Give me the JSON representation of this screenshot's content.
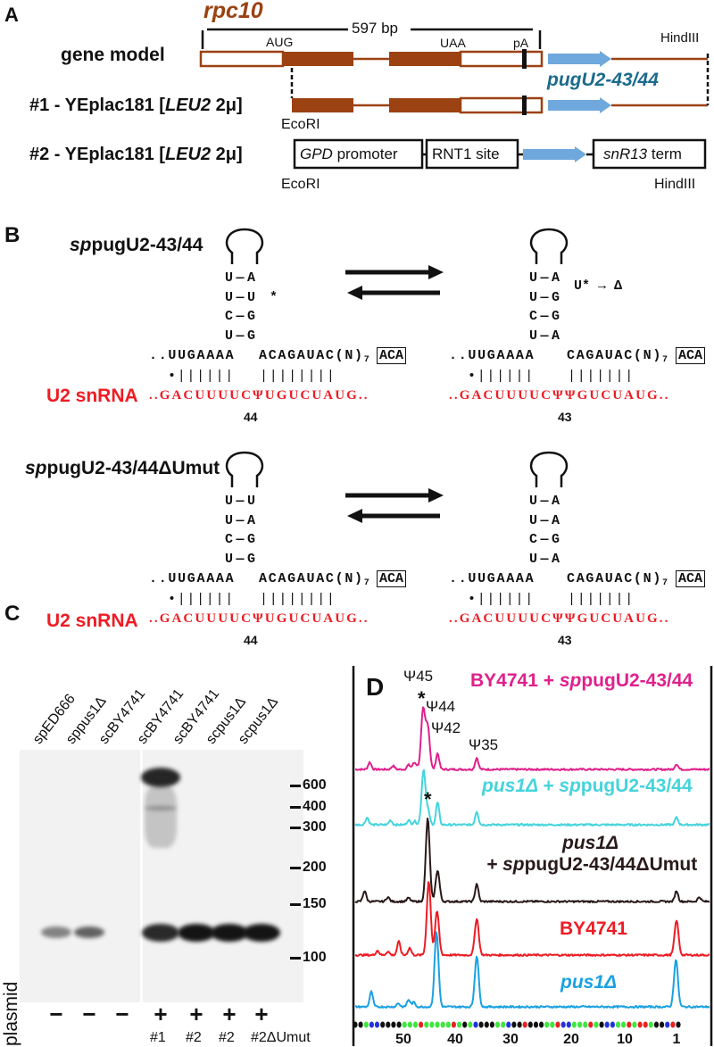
{
  "panel_labels": {
    "a": "A",
    "b": "B",
    "c": "C",
    "d": "D"
  },
  "panel_a": {
    "gene_name": "rpc10",
    "length": "597 bp",
    "aug": "AUG",
    "uaa": "UAA",
    "pa": "pA",
    "hindiii": "HindIII",
    "ecori": "EcoRI",
    "pug": "pugU2-43/44",
    "row_gene_model": "gene model",
    "row1": {
      "prefix": "#1 - YEplac181 [",
      "italic": "LEU2",
      "suffix": " 2μ]"
    },
    "row2": {
      "prefix": "#2 - YEplac181 [",
      "italic": "LEU2",
      "suffix": " 2μ]"
    },
    "gpd": {
      "italic": "GPD",
      "rest": " promoter"
    },
    "rnt1": "RNT1 site",
    "snr13": {
      "italic": "snR13",
      "rest": " term"
    },
    "colors": {
      "exon": "#9c4112",
      "arrow": "#6fa8dc",
      "pug": "#1b6a8c"
    }
  },
  "panel_b": {
    "u2_label": "U2 snRNA",
    "constructs": [
      {
        "name_italic": "sp",
        "name_rest": "pugU2-43/44",
        "left": {
          "pairs": [
            "U—A",
            "U—U *",
            "C—G",
            "U—G"
          ],
          "seq5": "..UUGAAAA",
          "seq3": "ACAGAUAC(N)",
          "sub": "7",
          "box": "ACA",
          "bars5": "•||||||",
          "bars3": "||||||||",
          "u2": "..GACUUUUCΨUGUCUAUG..",
          "pos": "44"
        },
        "right": {
          "pairs": [
            "U—A",
            "U—G",
            "C—G",
            "U—A"
          ],
          "note": "U* → Δ",
          "seq5": "..UUGAAAA",
          "seq3": "CAGAUAC(N)",
          "sub": "7",
          "box": "ACA",
          "bars5": "•||||||",
          "bars3": "|||||||",
          "u2": "..GACUUUUCΨΨGUCUAUG..",
          "pos": "43"
        }
      },
      {
        "name_italic": "sp",
        "name_rest": "pugU2-43/44ΔUmut",
        "left": {
          "pairs": [
            "U—U",
            "U—A",
            "C—G",
            "U—G"
          ],
          "seq5": "..UUGAAAA",
          "seq3": "ACAGAUAC(N)",
          "sub": "7",
          "box": "ACA",
          "bars5": "•||||||",
          "bars3": "||||||||",
          "u2": "..GACUUUUCΨUGUCUAUG..",
          "pos": "44"
        },
        "right": {
          "pairs": [
            "U—A",
            "U—A",
            "C—G",
            "U—A"
          ],
          "seq5": "..UUGAAAA",
          "seq3": "CAGAUAC(N)",
          "sub": "7",
          "box": "ACA",
          "bars5": "•||||||",
          "bars3": "|||||||",
          "u2": "..GACUUUUCΨΨGUCUAUG..",
          "pos": "43"
        }
      }
    ]
  },
  "panel_c": {
    "row_label": "plasmid",
    "markers": [
      "600",
      "400",
      "300",
      "200",
      "150",
      "100"
    ],
    "lanes": [
      {
        "label": "spED666",
        "sign": "−",
        "plasmid": "",
        "band_intensity": 0.5,
        "high_band": 0
      },
      {
        "label": "sppus1Δ",
        "sign": "−",
        "plasmid": "",
        "band_intensity": 0.65,
        "high_band": 0
      },
      {
        "label": "scBY4741",
        "sign": "−",
        "plasmid": "",
        "band_intensity": 0,
        "high_band": 0
      },
      {
        "label": "scBY4741",
        "sign": "+",
        "plasmid": "#1",
        "band_intensity": 0.9,
        "high_band": 0.9
      },
      {
        "label": "scBY4741",
        "sign": "+",
        "plasmid": "#2",
        "band_intensity": 1,
        "high_band": 0
      },
      {
        "label": "scpus1Δ",
        "sign": "+",
        "plasmid": "#2",
        "band_intensity": 1,
        "high_band": 0
      },
      {
        "label": "scpus1Δ",
        "sign": "+",
        "plasmid": "#2ΔUmut",
        "band_intensity": 1,
        "high_band": 0
      }
    ]
  },
  "panel_d": {
    "annotations": {
      "psi45": "Ψ45",
      "psi44": "Ψ44",
      "psi42": "Ψ42",
      "psi35": "Ψ35",
      "star": "*"
    },
    "sequence_dots": "kkgbbkkkkgggrgggggrgkgbkkkggbkkrkkkggrbbgggrgkbbggrgrrgkkbrk",
    "dot_colors": {
      "k": "#111111",
      "g": "#3ee63e",
      "b": "#2233dd",
      "r": "#e82222"
    }
  },
  "chart_data": {
    "type": "line",
    "x_ticks": [
      "50",
      "40",
      "30",
      "20",
      "10",
      "1"
    ],
    "x_tick_values": [
      50,
      40,
      30,
      20,
      10,
      1
    ],
    "grid": false,
    "series": [
      {
        "lines": [
          [
            {
              "t": "BY4741 + "
            },
            {
              "t": "sp",
              "i": true
            },
            {
              "t": "pugU2-43/44"
            }
          ]
        ],
        "color": "#e0208c",
        "peaks": [
          [
            46.2,
            66
          ],
          [
            45.3,
            48
          ],
          [
            43.4,
            18
          ],
          [
            36.1,
            13
          ],
          [
            1,
            6
          ],
          [
            56.5,
            8
          ],
          [
            52,
            4
          ],
          [
            49,
            5
          ],
          [
            48,
            6
          ],
          [
            47.5,
            4
          ]
        ]
      },
      {
        "lines": [
          [
            {
              "t": "pus1Δ + sp",
              "i": true
            },
            {
              "t": "pugU2-43/44"
            }
          ]
        ],
        "color": "#44d4dc",
        "peaks": [
          [
            46.1,
            62
          ],
          [
            45.2,
            14
          ],
          [
            43.4,
            25
          ],
          [
            36.1,
            15
          ],
          [
            1,
            8
          ],
          [
            57,
            8
          ],
          [
            52.5,
            5
          ],
          [
            49,
            5
          ],
          [
            47.8,
            4
          ]
        ]
      },
      {
        "lines": [
          [
            {
              "t": "pus1Δ",
              "i": true
            }
          ],
          [
            {
              "t": "+ sp",
              "i": true
            },
            {
              "t": "pugU2-43/44ΔUmut"
            }
          ]
        ],
        "color": "#2a1a1a",
        "peaks": [
          [
            45.3,
            93
          ],
          [
            43.4,
            35
          ],
          [
            36.1,
            20
          ],
          [
            1,
            12
          ],
          [
            57.5,
            12
          ],
          [
            53,
            5
          ],
          [
            49,
            4
          ],
          [
            -3,
            5
          ]
        ]
      },
      {
        "lines": [
          [
            {
              "t": "BY4741"
            }
          ]
        ],
        "color": "#ee1c24",
        "peaks": [
          [
            45.1,
            83
          ],
          [
            43.5,
            49
          ],
          [
            36.1,
            41
          ],
          [
            1,
            39
          ],
          [
            50.9,
            15
          ],
          [
            48.8,
            8
          ],
          [
            55,
            5
          ],
          [
            53,
            4
          ]
        ]
      },
      {
        "lines": [
          [
            {
              "t": "pus1Δ",
              "i": true
            }
          ]
        ],
        "color": "#1ba1e2",
        "peaks": [
          [
            43.6,
            84
          ],
          [
            36.1,
            57
          ],
          [
            1.1,
            53
          ],
          [
            56.2,
            17
          ],
          [
            49,
            8
          ],
          [
            48,
            5
          ],
          [
            51,
            4
          ]
        ]
      }
    ]
  }
}
